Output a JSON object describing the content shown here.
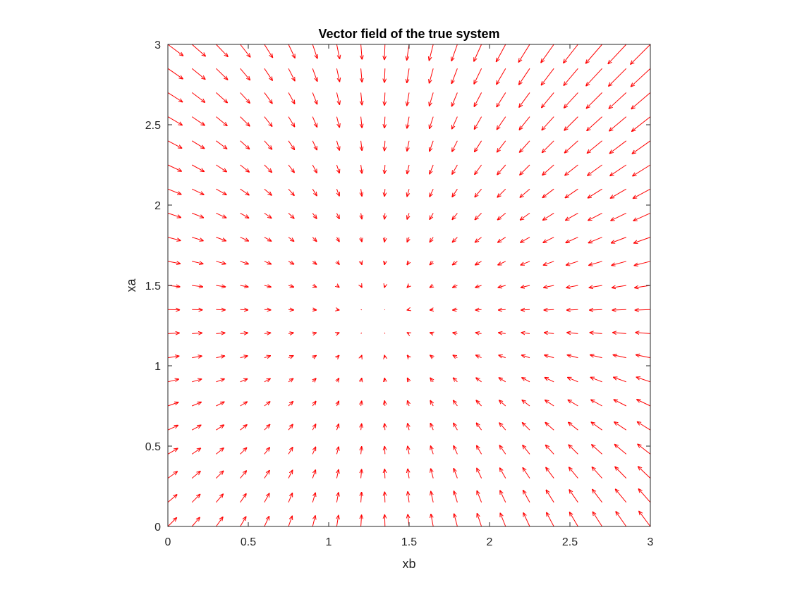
{
  "chart_data": {
    "type": "quiver",
    "title": "Vector field of the true system",
    "xlabel": "xb",
    "ylabel": "xa",
    "xlim": [
      0,
      3
    ],
    "ylim": [
      0,
      3
    ],
    "x_ticks": [
      "0",
      "0.5",
      "1",
      "1.5",
      "2",
      "2.5",
      "3"
    ],
    "y_ticks": [
      "0",
      "0.5",
      "1",
      "1.5",
      "2",
      "2.5",
      "3"
    ],
    "grid": false,
    "legend": "none",
    "series": [
      {
        "color": "#ff0000",
        "x_grid": {
          "start": 0,
          "end": 3,
          "count": 21
        },
        "y_grid": {
          "start": 0,
          "end": 3,
          "count": 21
        },
        "equilibrium": {
          "xb": 1.3,
          "xa": 1.3
        },
        "description_field": "arrows point toward the equilibrium near (1.3, 1.3)"
      }
    ]
  }
}
